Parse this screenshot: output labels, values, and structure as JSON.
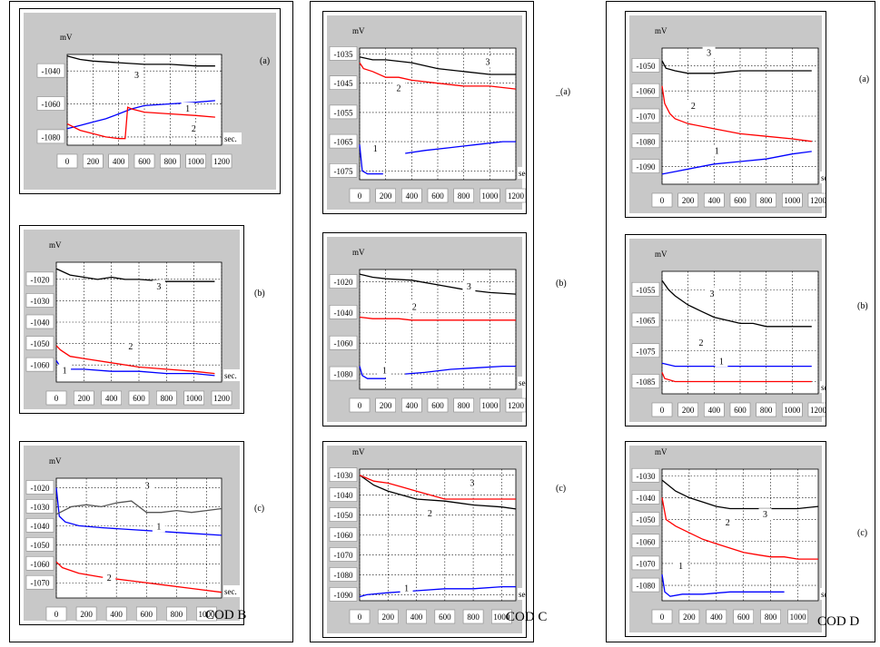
{
  "figure": {
    "columns": [
      {
        "label": "",
        "panels": [
          0,
          1,
          2
        ]
      },
      {
        "label": "COD C",
        "panels": [
          3,
          4,
          5
        ]
      },
      {
        "label": "COD D",
        "panels": [
          6,
          7,
          8
        ]
      }
    ],
    "extra_label": "COD B"
  },
  "chart_data": [
    {
      "type": "line",
      "tag": "(a)",
      "ylabel": "mV",
      "xlabel": "sec.",
      "xlim": [
        0,
        1200
      ],
      "ylim": [
        -1085,
        -1030
      ],
      "xticks": [
        "0",
        "200",
        "400",
        "600",
        "800",
        "1000",
        "1200"
      ],
      "yticks": [
        "-1040",
        "-1060",
        "-1080"
      ],
      "grid": true,
      "series": [
        {
          "name": "1",
          "color": "#0000ff",
          "x": [
            0,
            100,
            200,
            300,
            400,
            500,
            600,
            800,
            1000,
            1150
          ],
          "y": [
            -1075,
            -1073,
            -1071,
            -1069,
            -1066,
            -1063,
            -1061,
            -1060,
            -1059,
            -1058
          ]
        },
        {
          "name": "2",
          "color": "#ff0000",
          "x": [
            0,
            100,
            200,
            300,
            400,
            450,
            470,
            500,
            600,
            800,
            1000,
            1150
          ],
          "y": [
            -1072,
            -1076,
            -1078,
            -1080,
            -1081,
            -1081,
            -1062,
            -1063,
            -1065,
            -1066,
            -1067,
            -1068
          ]
        },
        {
          "name": "3",
          "color": "#000000",
          "x": [
            0,
            100,
            200,
            400,
            600,
            800,
            1000,
            1150
          ],
          "y": [
            -1031,
            -1033,
            -1034,
            -1035,
            -1036,
            -1036,
            -1037,
            -1037
          ]
        }
      ]
    },
    {
      "type": "line",
      "tag": "(b)",
      "ylabel": "mV",
      "xlabel": "sec.",
      "xlim": [
        0,
        1200
      ],
      "ylim": [
        -1068,
        -1012
      ],
      "xticks": [
        "0",
        "200",
        "400",
        "600",
        "800",
        "1000",
        "1200"
      ],
      "yticks": [
        "-1020",
        "-1030",
        "-1040",
        "-1050",
        "-1060"
      ],
      "grid": true,
      "series": [
        {
          "name": "1",
          "color": "#0000ff",
          "x": [
            0,
            20,
            60,
            200,
            400,
            600,
            800,
            1000,
            1150
          ],
          "y": [
            -1058,
            -1060,
            -1062,
            -1062,
            -1063,
            -1063,
            -1064,
            -1064,
            -1065
          ]
        },
        {
          "name": "2",
          "color": "#ff0000",
          "x": [
            0,
            30,
            100,
            200,
            400,
            600,
            800,
            1000,
            1150
          ],
          "y": [
            -1051,
            -1053,
            -1056,
            -1057,
            -1059,
            -1061,
            -1062,
            -1063,
            -1064
          ]
        },
        {
          "name": "3",
          "color": "#000000",
          "x": [
            0,
            100,
            200,
            300,
            400,
            500,
            600,
            800,
            1000,
            1150
          ],
          "y": [
            -1015,
            -1018,
            -1019,
            -1020,
            -1019,
            -1020,
            -1020,
            -1021,
            -1021,
            -1021
          ]
        }
      ]
    },
    {
      "type": "line",
      "tag": "(c)",
      "ylabel": "mV",
      "xlabel": "sec.",
      "xlim": [
        0,
        1100
      ],
      "ylim": [
        -1078,
        -1015
      ],
      "xticks": [
        "0",
        "200",
        "400",
        "600",
        "800",
        "1000"
      ],
      "yticks": [
        "-1020",
        "-1030",
        "-1040",
        "-1050",
        "-1060",
        "-1070"
      ],
      "grid": true,
      "series": [
        {
          "name": "1",
          "color": "#0000ff",
          "x": [
            0,
            20,
            60,
            150,
            300,
            500,
            700,
            900,
            1100
          ],
          "y": [
            -1020,
            -1035,
            -1038,
            -1040,
            -1041,
            -1042,
            -1043,
            -1044,
            -1045
          ]
        },
        {
          "name": "2",
          "color": "#ff0000",
          "x": [
            0,
            40,
            150,
            300,
            500,
            700,
            900,
            1100
          ],
          "y": [
            -1059,
            -1062,
            -1065,
            -1067,
            -1069,
            -1071,
            -1073,
            -1075
          ]
        },
        {
          "name": "3",
          "color": "#555555",
          "x": [
            0,
            100,
            200,
            300,
            400,
            500,
            600,
            700,
            800,
            900,
            1000,
            1100
          ],
          "y": [
            -1034,
            -1030,
            -1029,
            -1030,
            -1028,
            -1027,
            -1033,
            -1033,
            -1032,
            -1033,
            -1032,
            -1031
          ]
        }
      ]
    },
    {
      "type": "line",
      "tag": "_(a)",
      "ylabel": "mV",
      "xlabel": "sec.",
      "xlim": [
        0,
        1200
      ],
      "ylim": [
        -1078,
        -1033
      ],
      "xticks": [
        "0",
        "200",
        "400",
        "600",
        "800",
        "1000",
        "1200"
      ],
      "yticks": [
        "-1035",
        "-1045",
        "-1055",
        "-1065",
        "-1075"
      ],
      "grid": true,
      "series": [
        {
          "name": "1",
          "color": "#0000ff",
          "x": [
            0,
            20,
            60,
            180
          ],
          "y": [
            -1066,
            -1075,
            -1076,
            -1076
          ],
          "x2": [
            350,
            500,
            700,
            900,
            1100,
            1200
          ],
          "y2": [
            -1069,
            -1068,
            -1067,
            -1066,
            -1065,
            -1065
          ]
        },
        {
          "name": "2",
          "color": "#ff0000",
          "x": [
            0,
            30,
            100,
            200,
            300,
            400,
            600,
            800,
            1000,
            1200
          ],
          "y": [
            -1038,
            -1040,
            -1041,
            -1043,
            -1043,
            -1044,
            -1045,
            -1046,
            -1046,
            -1047
          ]
        },
        {
          "name": "3",
          "color": "#000000",
          "x": [
            0,
            100,
            200,
            400,
            600,
            800,
            1000,
            1200
          ],
          "y": [
            -1036,
            -1037,
            -1037,
            -1038,
            -1040,
            -1041,
            -1042,
            -1042
          ]
        }
      ]
    },
    {
      "type": "line",
      "tag": "(b)",
      "ylabel": "mV",
      "xlabel": "sec.",
      "xlim": [
        0,
        1200
      ],
      "ylim": [
        -1090,
        -1012
      ],
      "xticks": [
        "0",
        "200",
        "400",
        "600",
        "800",
        "1000",
        "1200"
      ],
      "yticks": [
        "-1020",
        "-1040",
        "-1060",
        "-1080"
      ],
      "grid": true,
      "series": [
        {
          "name": "1",
          "color": "#0000ff",
          "x": [
            0,
            20,
            60,
            200
          ],
          "y": [
            -1075,
            -1081,
            -1083,
            -1083
          ],
          "x2": [
            350,
            500,
            700,
            900,
            1100,
            1200
          ],
          "y2": [
            -1080,
            -1079,
            -1077,
            -1076,
            -1075,
            -1075
          ]
        },
        {
          "name": "2",
          "color": "#ff0000",
          "x": [
            0,
            100,
            200,
            300,
            400,
            600,
            800,
            1000,
            1200
          ],
          "y": [
            -1043,
            -1044,
            -1044,
            -1044,
            -1045,
            -1045,
            -1045,
            -1045,
            -1045
          ]
        },
        {
          "name": "3",
          "color": "#000000",
          "x": [
            0,
            100,
            200,
            400,
            600,
            800,
            1000,
            1200
          ],
          "y": [
            -1015,
            -1017,
            -1018,
            -1019,
            -1022,
            -1025,
            -1027,
            -1028
          ]
        }
      ]
    },
    {
      "type": "line",
      "tag": "(c)",
      "ylabel": "mV",
      "xlabel": "sec.",
      "xlim": [
        0,
        1100
      ],
      "ylim": [
        -1093,
        -1027
      ],
      "xticks": [
        "0",
        "200",
        "400",
        "600",
        "800",
        "1000"
      ],
      "yticks": [
        "-1030",
        "-1040",
        "-1050",
        "-1060",
        "-1070",
        "-1080",
        "-1090"
      ],
      "grid": true,
      "series": [
        {
          "name": "1",
          "color": "#0000ff",
          "x": [
            0,
            50,
            200,
            400,
            600,
            800,
            1000,
            1100
          ],
          "y": [
            -1091,
            -1090,
            -1089,
            -1088,
            -1087,
            -1087,
            -1086,
            -1086
          ]
        },
        {
          "name": "2",
          "color": "#000000",
          "x": [
            0,
            100,
            200,
            300,
            400,
            600,
            800,
            1000,
            1100
          ],
          "y": [
            -1030,
            -1035,
            -1038,
            -1040,
            -1042,
            -1043,
            -1045,
            -1046,
            -1047
          ]
        },
        {
          "name": "3",
          "color": "#ff0000",
          "x": [
            0,
            100,
            200,
            300,
            400,
            500,
            600,
            800,
            1000,
            1100
          ],
          "y": [
            -1030,
            -1033,
            -1034,
            -1036,
            -1038,
            -1040,
            -1042,
            -1042,
            -1042,
            -1042
          ]
        }
      ]
    },
    {
      "type": "line",
      "tag": "(a)",
      "ylabel": "mV",
      "xlabel": "sec.",
      "xlim": [
        0,
        1200
      ],
      "ylim": [
        -1097,
        -1043
      ],
      "xticks": [
        "0",
        "200",
        "400",
        "600",
        "800",
        "1000",
        "1200"
      ],
      "yticks": [
        "-1050",
        "-1060",
        "-1070",
        "-1080",
        "-1090"
      ],
      "grid": true,
      "series": [
        {
          "name": "1",
          "color": "#0000ff",
          "x": [
            0,
            100,
            200,
            400,
            600,
            800,
            1000,
            1150
          ],
          "y": [
            -1093,
            -1092,
            -1091,
            -1089,
            -1088,
            -1087,
            -1085,
            -1084
          ]
        },
        {
          "name": "2",
          "color": "#ff0000",
          "x": [
            0,
            20,
            60,
            100,
            200,
            400,
            600,
            800,
            1000,
            1150
          ],
          "y": [
            -1058,
            -1065,
            -1069,
            -1071,
            -1073,
            -1075,
            -1077,
            -1078,
            -1079,
            -1080
          ]
        },
        {
          "name": "3",
          "color": "#000000",
          "x": [
            0,
            30,
            100,
            200,
            300,
            400,
            600,
            800,
            1000,
            1150
          ],
          "y": [
            -1048,
            -1051,
            -1052,
            -1053,
            -1053,
            -1053,
            -1052,
            -1052,
            -1052,
            -1052
          ]
        }
      ]
    },
    {
      "type": "line",
      "tag": "(b)",
      "ylabel": "mV",
      "xlabel": "sec.",
      "xlim": [
        0,
        1200
      ],
      "ylim": [
        -1089,
        -1049
      ],
      "xticks": [
        "0",
        "200",
        "400",
        "600",
        "800",
        "1000",
        "1200"
      ],
      "yticks": [
        "-1055",
        "-1065",
        "-1075",
        "-1085"
      ],
      "grid": true,
      "series": [
        {
          "name": "1",
          "color": "#0000ff",
          "x": [
            0,
            100,
            200,
            400,
            600,
            800,
            1000,
            1150
          ],
          "y": [
            -1079,
            -1080,
            -1080,
            -1080,
            -1080,
            -1080,
            -1080,
            -1080
          ]
        },
        {
          "name": "2",
          "color": "#ff0000",
          "x": [
            0,
            20,
            100,
            200,
            400,
            600,
            800,
            1000,
            1150
          ],
          "y": [
            -1082,
            -1084,
            -1085,
            -1085,
            -1085,
            -1085,
            -1085,
            -1085,
            -1085
          ]
        },
        {
          "name": "3",
          "color": "#000000",
          "x": [
            0,
            50,
            100,
            200,
            300,
            400,
            500,
            600,
            700,
            800,
            1000,
            1150
          ],
          "y": [
            -1052,
            -1055,
            -1057,
            -1060,
            -1062,
            -1064,
            -1065,
            -1066,
            -1066,
            -1067,
            -1067,
            -1067
          ]
        }
      ]
    },
    {
      "type": "line",
      "tag": "(c)",
      "ylabel": "mV",
      "xlabel": "sec.",
      "xlim": [
        0,
        1150
      ],
      "ylim": [
        -1087,
        -1027
      ],
      "xticks": [
        "0",
        "200",
        "400",
        "600",
        "800",
        "1000"
      ],
      "yticks": [
        "-1030",
        "-1040",
        "-1050",
        "-1060",
        "-1070",
        "-1080"
      ],
      "grid": true,
      "series": [
        {
          "name": "1",
          "color": "#0000ff",
          "x": [
            0,
            20,
            60,
            150,
            300,
            500,
            700,
            900
          ],
          "y": [
            -1075,
            -1083,
            -1085,
            -1084,
            -1084,
            -1083,
            -1083,
            -1083
          ]
        },
        {
          "name": "2",
          "color": "#ff0000",
          "x": [
            0,
            30,
            100,
            200,
            300,
            400,
            500,
            600,
            700,
            800,
            900,
            1000,
            1150
          ],
          "y": [
            -1040,
            -1050,
            -1053,
            -1056,
            -1059,
            -1061,
            -1063,
            -1065,
            -1066,
            -1067,
            -1067,
            -1068,
            -1068
          ]
        },
        {
          "name": "3",
          "color": "#000000",
          "x": [
            0,
            100,
            200,
            300,
            400,
            500,
            600,
            700,
            800,
            900,
            1000,
            1150
          ],
          "y": [
            -1032,
            -1037,
            -1040,
            -1042,
            -1044,
            -1045,
            -1045,
            -1045,
            -1045,
            -1045,
            -1045,
            -1044
          ]
        }
      ]
    }
  ]
}
